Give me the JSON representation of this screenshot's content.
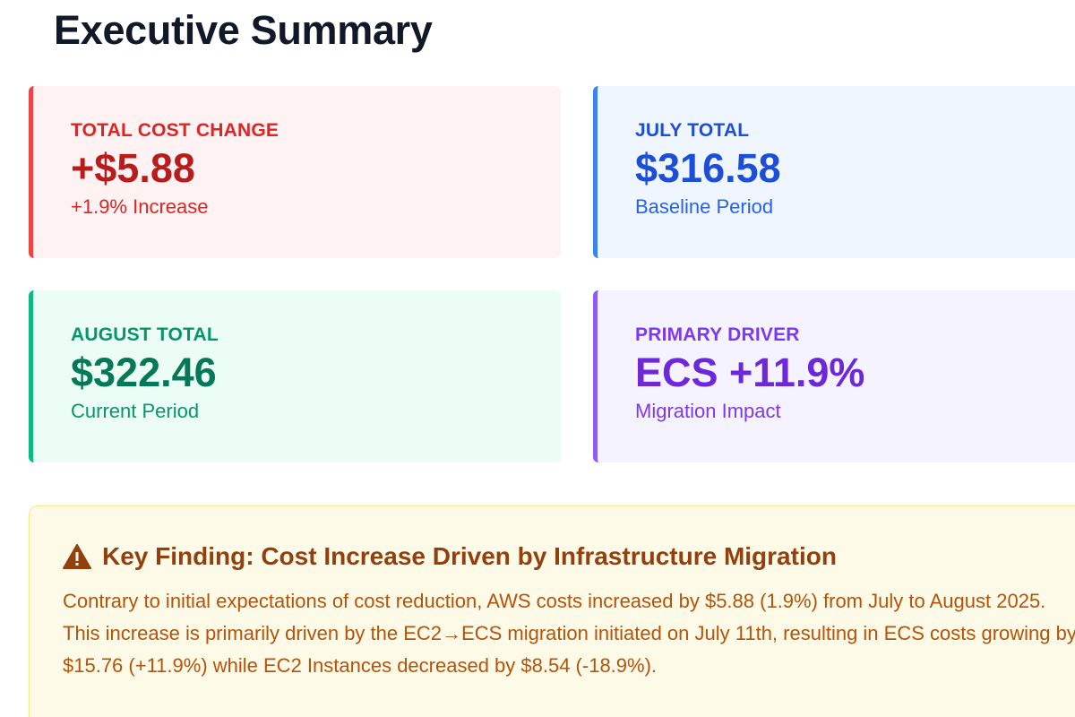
{
  "page_title": "Executive Summary",
  "cards": [
    {
      "label": "TOTAL COST CHANGE",
      "value": "+$5.88",
      "sub": "+1.9% Increase",
      "accent": "#ef4444"
    },
    {
      "label": "JULY TOTAL",
      "value": "$316.58",
      "sub": "Baseline Period",
      "accent": "#3b82f6"
    },
    {
      "label": "AUGUST TOTAL",
      "value": "$322.46",
      "sub": "Current Period",
      "accent": "#10b981"
    },
    {
      "label": "PRIMARY DRIVER",
      "value": "ECS +11.9%",
      "sub": "Migration Impact",
      "accent": "#8b5cf6"
    }
  ],
  "finding": {
    "icon": "warning-icon",
    "title": "Key Finding: Cost Increase Driven by Infrastructure Migration",
    "paragraph": "Contrary to initial expectations of cost reduction, AWS costs increased by $5.88 (1.9%) from July to August 2025. This increase is primarily driven by the EC2→ECS migration initiated on July 11th, resulting in ECS costs growing by $15.76 (+11.9%) while EC2 Instances decreased by $8.54 (-18.9%)."
  }
}
